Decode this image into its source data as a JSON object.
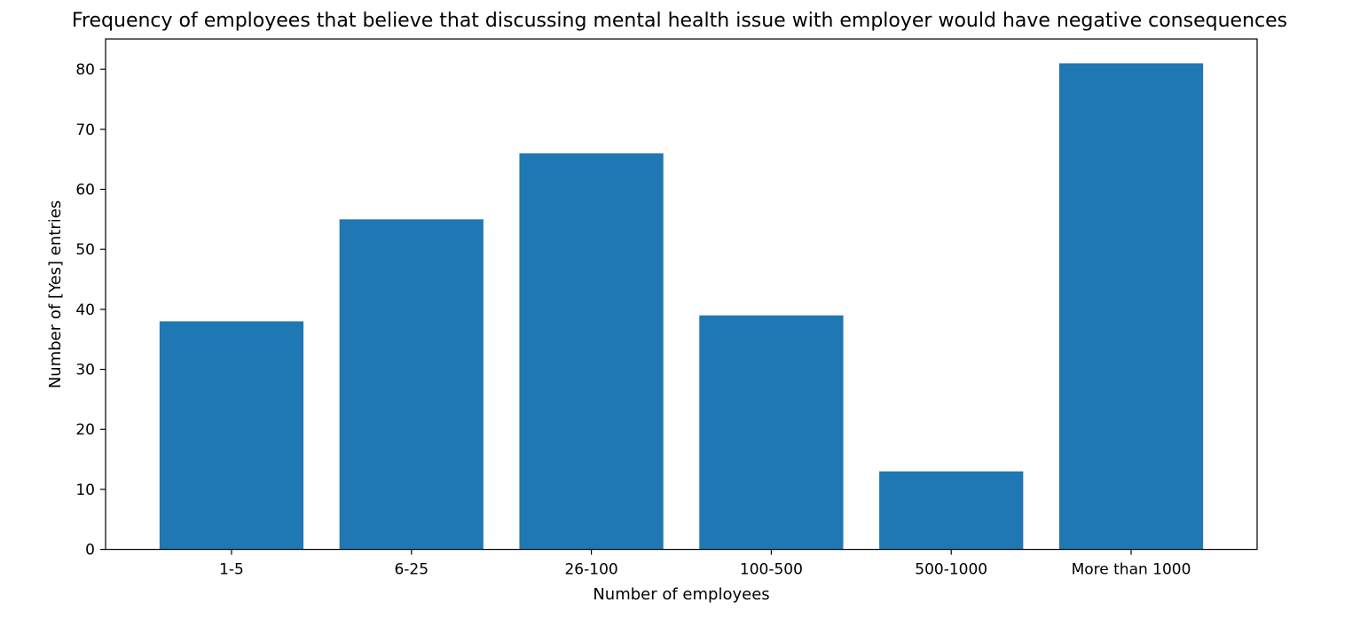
{
  "chart_data": {
    "type": "bar",
    "title": "Frequency of employees that believe that discussing mental health issue with employer would have negative consequences",
    "xlabel": "Number of employees",
    "ylabel": "Number of [Yes] entries",
    "categories": [
      "1-5",
      "6-25",
      "26-100",
      "100-500",
      "500-1000",
      "More than 1000"
    ],
    "values": [
      38,
      55,
      66,
      39,
      13,
      81
    ],
    "ylim": [
      0,
      85.05
    ],
    "yticks": [
      0,
      10,
      20,
      30,
      40,
      50,
      60,
      70,
      80
    ],
    "grid": false,
    "bar_color": "#1f77b4"
  }
}
